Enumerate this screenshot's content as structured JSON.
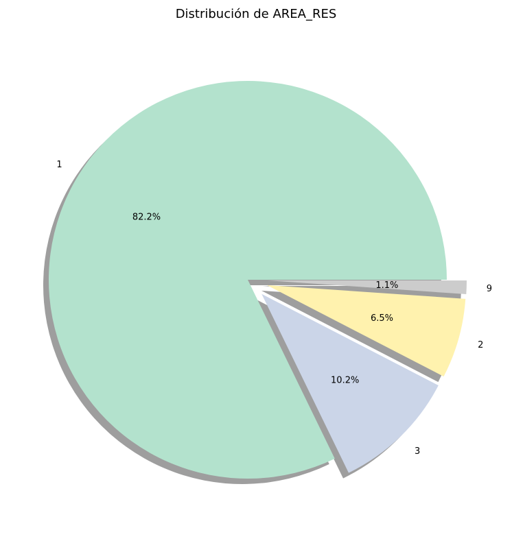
{
  "chart_data": {
    "type": "pie",
    "title": "Distribución de AREA_RES",
    "shadow": true,
    "start_angle_deg": 0,
    "direction": "counterclockwise",
    "slices": [
      {
        "label": "1",
        "value": 82.2,
        "pct_label": "82.2%",
        "color": "#b3e2cd",
        "exploded": false
      },
      {
        "label": "3",
        "value": 10.2,
        "pct_label": "10.2%",
        "color": "#cbd5e8",
        "exploded": true
      },
      {
        "label": "2",
        "value": 6.5,
        "pct_label": "6.5%",
        "color": "#fff2ae",
        "exploded": true
      },
      {
        "label": "9",
        "value": 1.1,
        "pct_label": "1.1%",
        "color": "#cccccc",
        "exploded": true
      }
    ]
  }
}
